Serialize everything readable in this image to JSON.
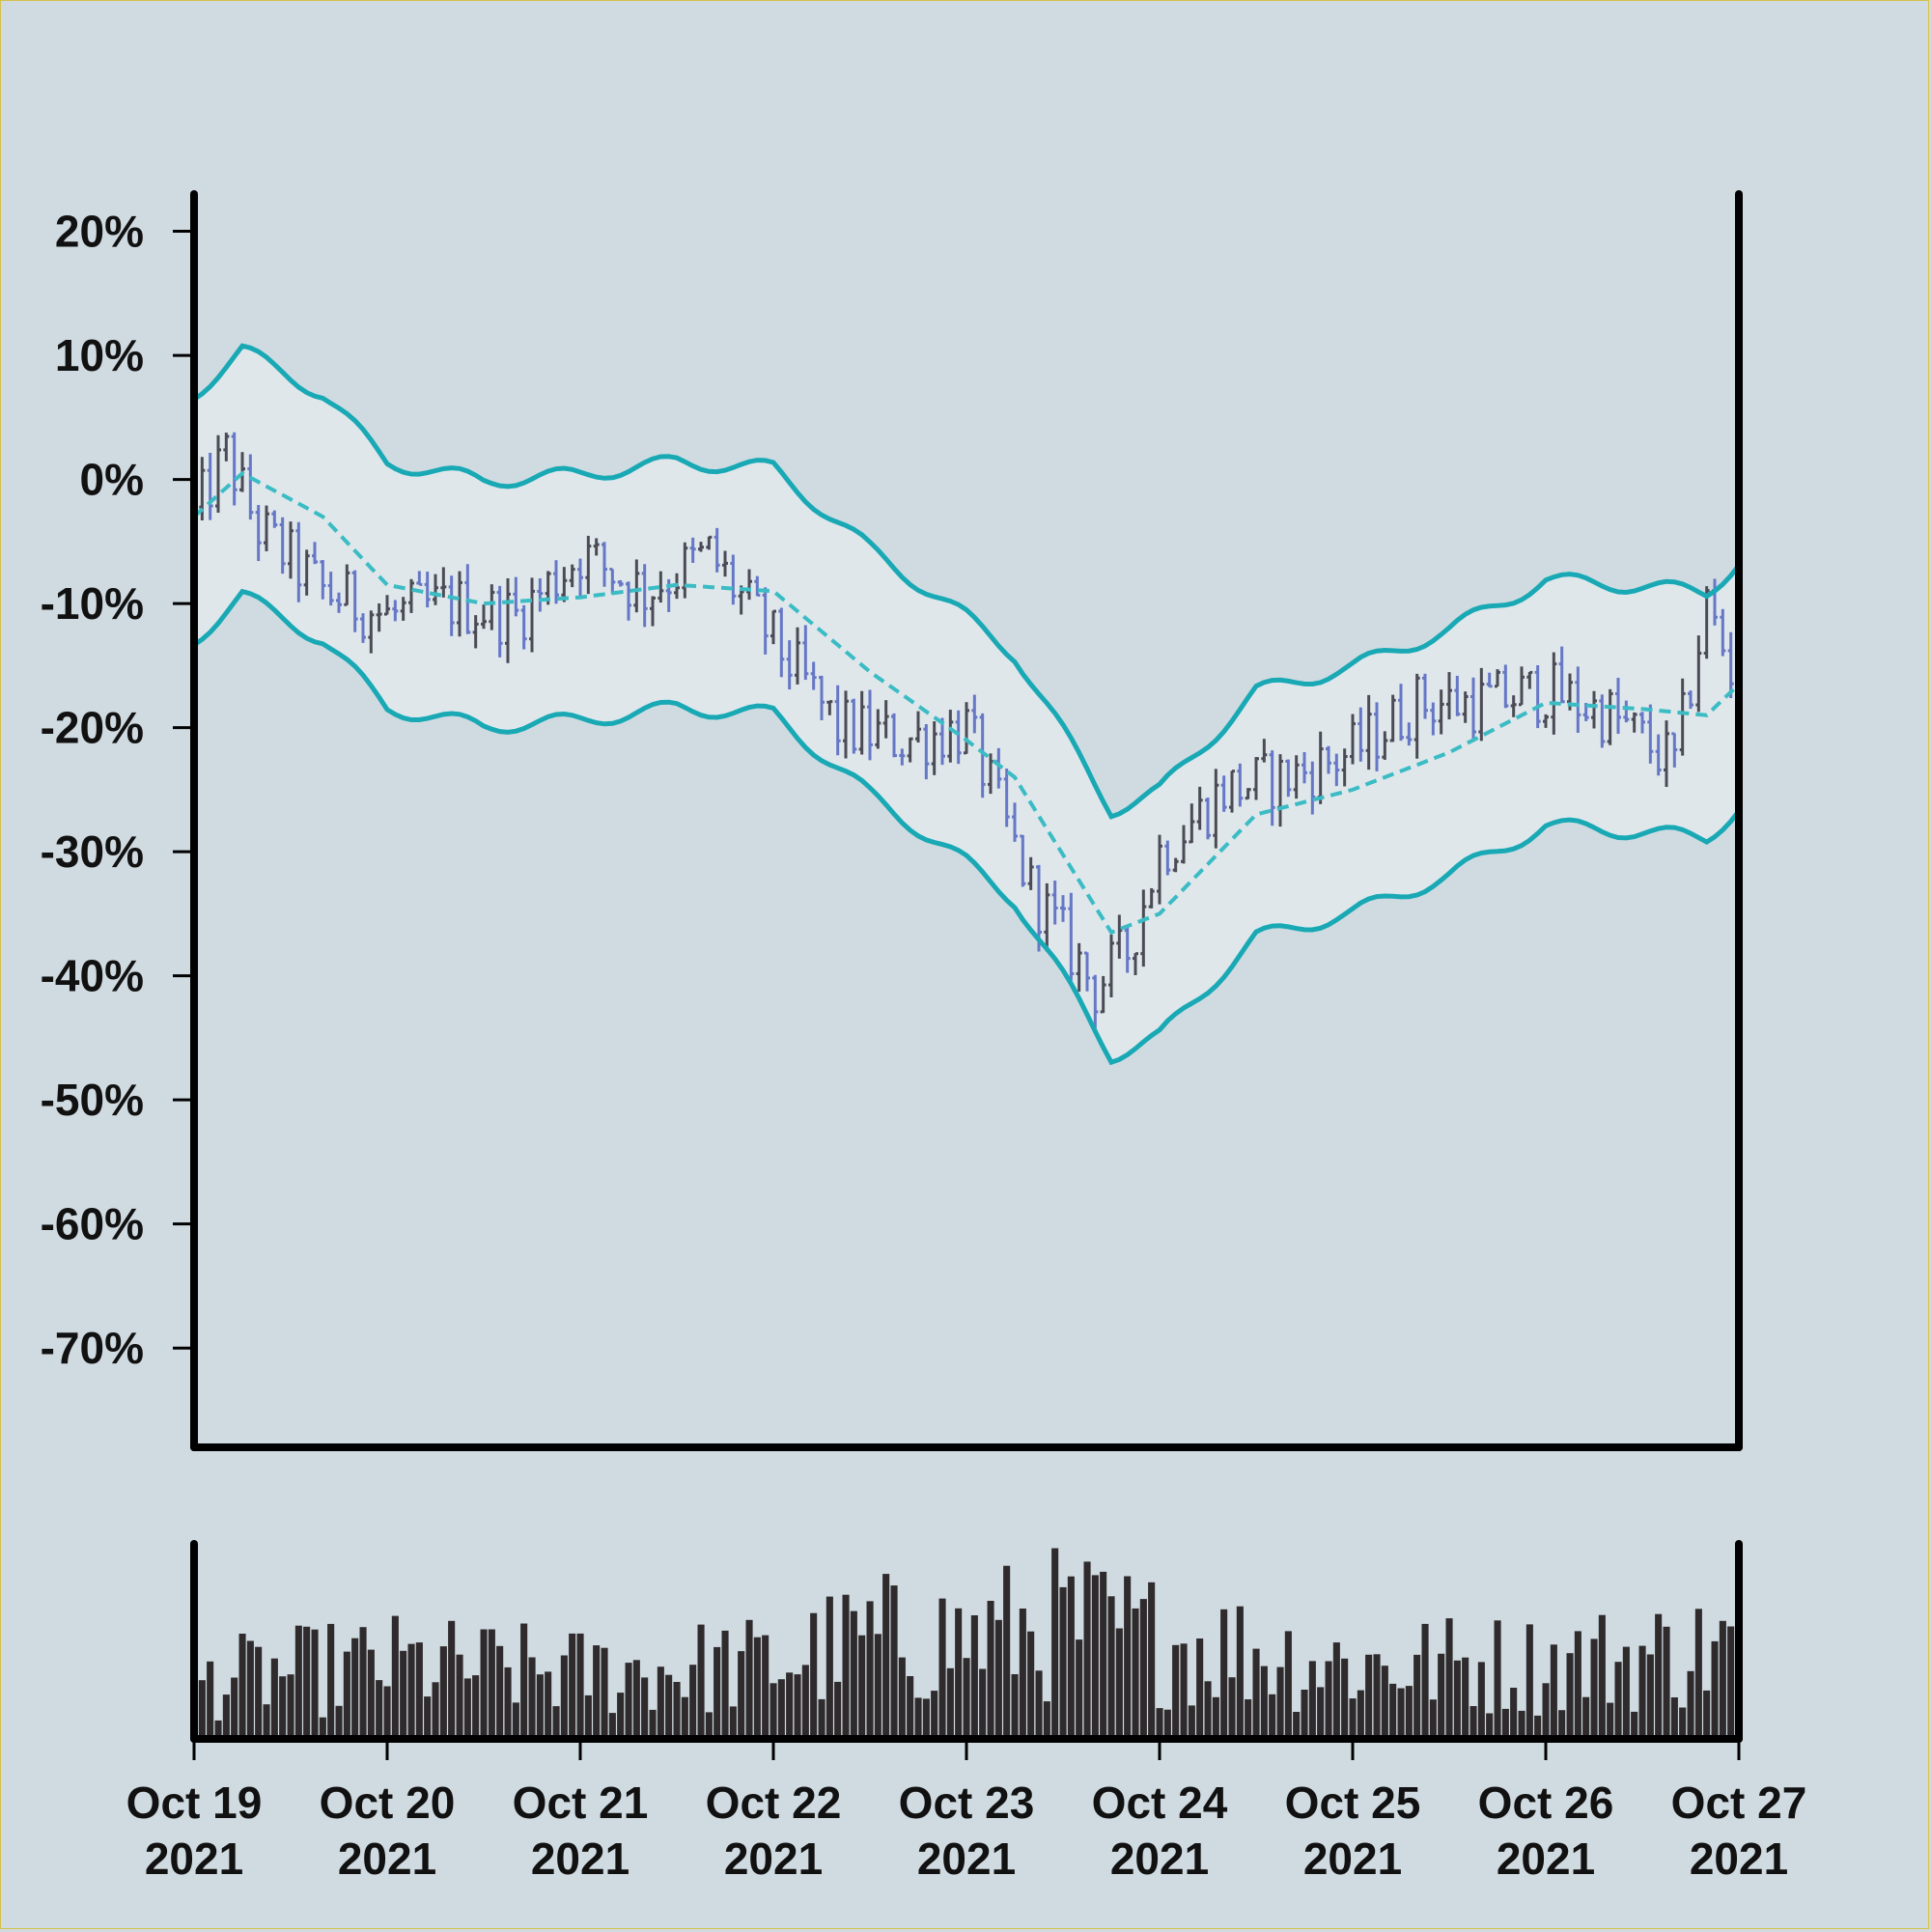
{
  "chart_data": {
    "type": "ohlc",
    "title": "",
    "xlabel": "",
    "ylabel": "",
    "ylim": [
      -78,
      23
    ],
    "y_ticks": [
      "20%",
      "10%",
      "0%",
      "-10%",
      "-20%",
      "-30%",
      "-40%",
      "-50%",
      "-60%",
      "-70%"
    ],
    "y_tick_values": [
      20,
      10,
      0,
      -10,
      -20,
      -30,
      -40,
      -50,
      -60,
      -70
    ],
    "x_range": [
      "2021-10-19 00:00",
      "2021-10-27 00:00"
    ],
    "x_ticks": [
      {
        "date": "2021-10-19",
        "line1": "Oct 19",
        "line2": "2021"
      },
      {
        "date": "2021-10-20",
        "line1": "Oct 20",
        "line2": "2021"
      },
      {
        "date": "2021-10-21",
        "line1": "Oct 21",
        "line2": "2021"
      },
      {
        "date": "2021-10-22",
        "line1": "Oct 22",
        "line2": "2021"
      },
      {
        "date": "2021-10-23",
        "line1": "Oct 23",
        "line2": "2021"
      },
      {
        "date": "2021-10-24",
        "line1": "Oct 24",
        "line2": "2021"
      },
      {
        "date": "2021-10-25",
        "line1": "Oct 25",
        "line2": "2021"
      },
      {
        "date": "2021-10-26",
        "line1": "Oct 26",
        "line2": "2021"
      },
      {
        "date": "2021-10-27",
        "line1": "Oct 27",
        "line2": "2021"
      }
    ],
    "bar_interval_hours": 1,
    "close_anchors": {
      "x": [
        "2021-10-19 00:00",
        "2021-10-19 04:00",
        "2021-10-19 08:00",
        "2021-10-19 16:00",
        "2021-10-20 00:00",
        "2021-10-20 08:00",
        "2021-10-20 16:00",
        "2021-10-21 00:00",
        "2021-10-21 08:00",
        "2021-10-21 16:00",
        "2021-10-22 00:00",
        "2021-10-22 08:00",
        "2021-10-22 16:00",
        "2021-10-23 00:00",
        "2021-10-23 08:00",
        "2021-10-23 16:00",
        "2021-10-23 20:00",
        "2021-10-24 00:00",
        "2021-10-24 08:00",
        "2021-10-24 16:00",
        "2021-10-25 00:00",
        "2021-10-25 08:00",
        "2021-10-25 16:00",
        "2021-10-26 00:00",
        "2021-10-26 08:00",
        "2021-10-26 16:00",
        "2021-10-26 20:00",
        "2021-10-27 00:00"
      ],
      "y": [
        -3,
        2,
        -4,
        -9,
        -11,
        -10,
        -11,
        -6,
        -9,
        -6,
        -13,
        -20,
        -21,
        -20,
        -33,
        -41,
        -38,
        -30,
        -25,
        -24,
        -22,
        -18,
        -18,
        -17,
        -19,
        -23,
        -10,
        -17
      ]
    },
    "ma_anchors": {
      "x": [
        "2021-10-19 00:00",
        "2021-10-19 06:00",
        "2021-10-19 16:00",
        "2021-10-20 00:00",
        "2021-10-20 12:00",
        "2021-10-21 00:00",
        "2021-10-21 12:00",
        "2021-10-22 00:00",
        "2021-10-22 12:00",
        "2021-10-23 00:00",
        "2021-10-23 06:00",
        "2021-10-23 18:00",
        "2021-10-24 00:00",
        "2021-10-24 12:00",
        "2021-10-25 00:00",
        "2021-10-25 12:00",
        "2021-10-26 00:00",
        "2021-10-26 12:00",
        "2021-10-26 20:00",
        "2021-10-27 00:00"
      ],
      "y": [
        -3,
        0.5,
        -3,
        -8.5,
        -10,
        -9.5,
        -8.5,
        -9,
        -15.5,
        -21,
        -24,
        -36.5,
        -35,
        -27,
        -25,
        -22,
        -18,
        -18.5,
        -19,
        -16.5
      ]
    },
    "band_offset": [
      9.9,
      -9.9
    ],
    "series": [
      {
        "name": "",
        "color": "#4b4b55",
        "role": "up_bars"
      },
      {
        "name": "",
        "color": "#6677c6",
        "role": "down_bars"
      },
      {
        "name": "",
        "color": "#19a9b5",
        "role": "bollinger_bands"
      },
      {
        "name": "",
        "color": "#3bbcc4",
        "role": "moving_average"
      }
    ],
    "volume": {
      "color": "#2f2b2d",
      "relative_anchors": {
        "x": [
          "2021-10-19 00:00",
          "2021-10-20 00:00",
          "2021-10-21 00:00",
          "2021-10-22 00:00",
          "2021-10-22 12:00",
          "2021-10-23 00:00",
          "2021-10-23 12:00",
          "2021-10-24 00:00",
          "2021-10-25 00:00",
          "2021-10-26 00:00",
          "2021-10-27 00:00"
        ],
        "y": [
          0.35,
          0.45,
          0.4,
          0.45,
          0.6,
          0.6,
          0.7,
          0.6,
          0.45,
          0.45,
          0.55
        ]
      }
    },
    "grid": false,
    "legend": "none"
  }
}
